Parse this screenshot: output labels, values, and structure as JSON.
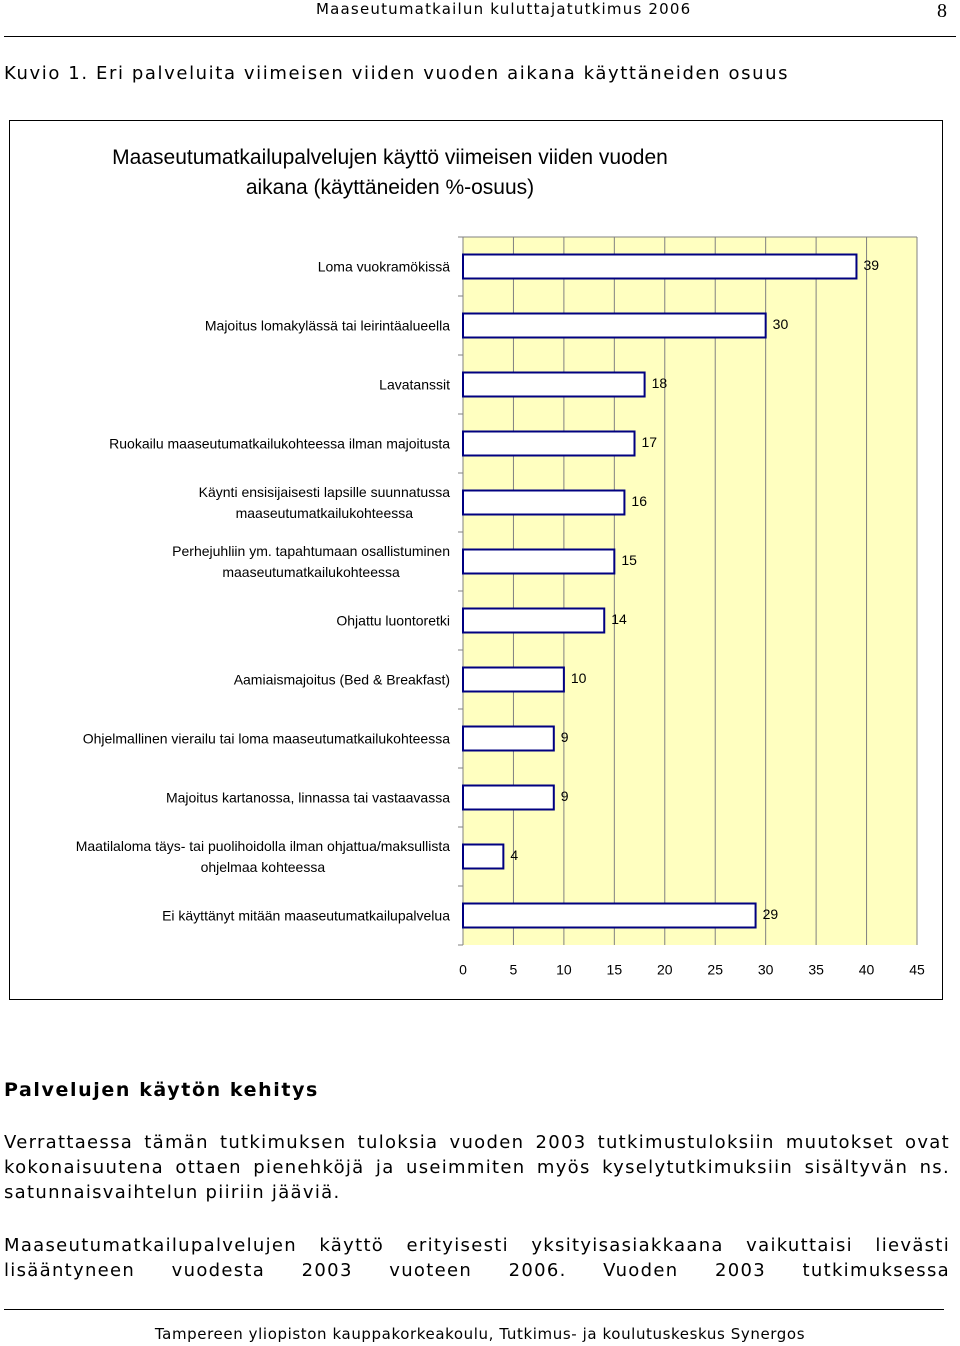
{
  "header": {
    "title": "Maaseutumatkailun kuluttajatutkimus 2006",
    "page_number": "8"
  },
  "caption": "Kuvio 1. Eri palveluita viimeisen viiden vuoden aikana käyttäneiden osuus",
  "chart_data": {
    "type": "bar",
    "title": "Maaseutumatkailupalvelujen käyttö viimeisen viiden vuoden aikana (käyttäneiden %-osuus)",
    "categories": [
      "Loma vuokramökissä",
      "Majoitus lomakylässä tai leirintäalueella",
      "Lavatanssit",
      "Ruokailu maaseutumatkailukohteessa ilman majoitusta",
      "Käynti ensisijaisesti lapsille suunnatussa\nmaaseutumatkailukohteessa",
      "Perhejuhliin ym. tapahtumaan osallistuminen\nmaaseutumatkailukohteessa",
      "Ohjattu luontoretki",
      "Aamiaismajoitus (Bed & Breakfast)",
      "Ohjelmallinen vierailu tai loma maaseutumatkailukohteessa",
      "Majoitus kartanossa, linnassa tai vastaavassa",
      "Maatilaloma täys- tai puolihoidolla ilman ohjattua/maksullista\nohjelmaa kohteessa",
      "Ei käyttänyt mitään maaseutumatkailupalvelua"
    ],
    "values": [
      39,
      30,
      18,
      17,
      16,
      15,
      14,
      10,
      9,
      9,
      4,
      29
    ],
    "color": "#ffffff",
    "edge_color": "#000080",
    "background": "#ffffc0",
    "xlim": [
      0,
      45
    ],
    "xticks": [
      0,
      5,
      10,
      15,
      20,
      25,
      30,
      35,
      40,
      45
    ],
    "grid": true
  },
  "section": {
    "heading": "Palvelujen käytön kehitys",
    "paragraphs": [
      "Verrattaessa tämän tutkimuksen tuloksia vuoden 2003 tutkimustuloksiin muutokset ovat kokonaisuutena ottaen pienehköjä ja useimmiten myös kyselytutkimuksiin sisältyvän ns. satunnaisvaihtelun piiriin jääviä.",
      "Maaseutumatkailupalvelujen käyttö erityisesti yksityisasiakkaana vaikuttaisi lievästi lisääntyneen vuodesta 2003 vuoteen 2006. Vuoden 2003 tutkimuksessa"
    ]
  },
  "footer": "Tampereen yliopiston kauppakorkeakoulu, Tutkimus- ja koulutuskeskus Synergos"
}
